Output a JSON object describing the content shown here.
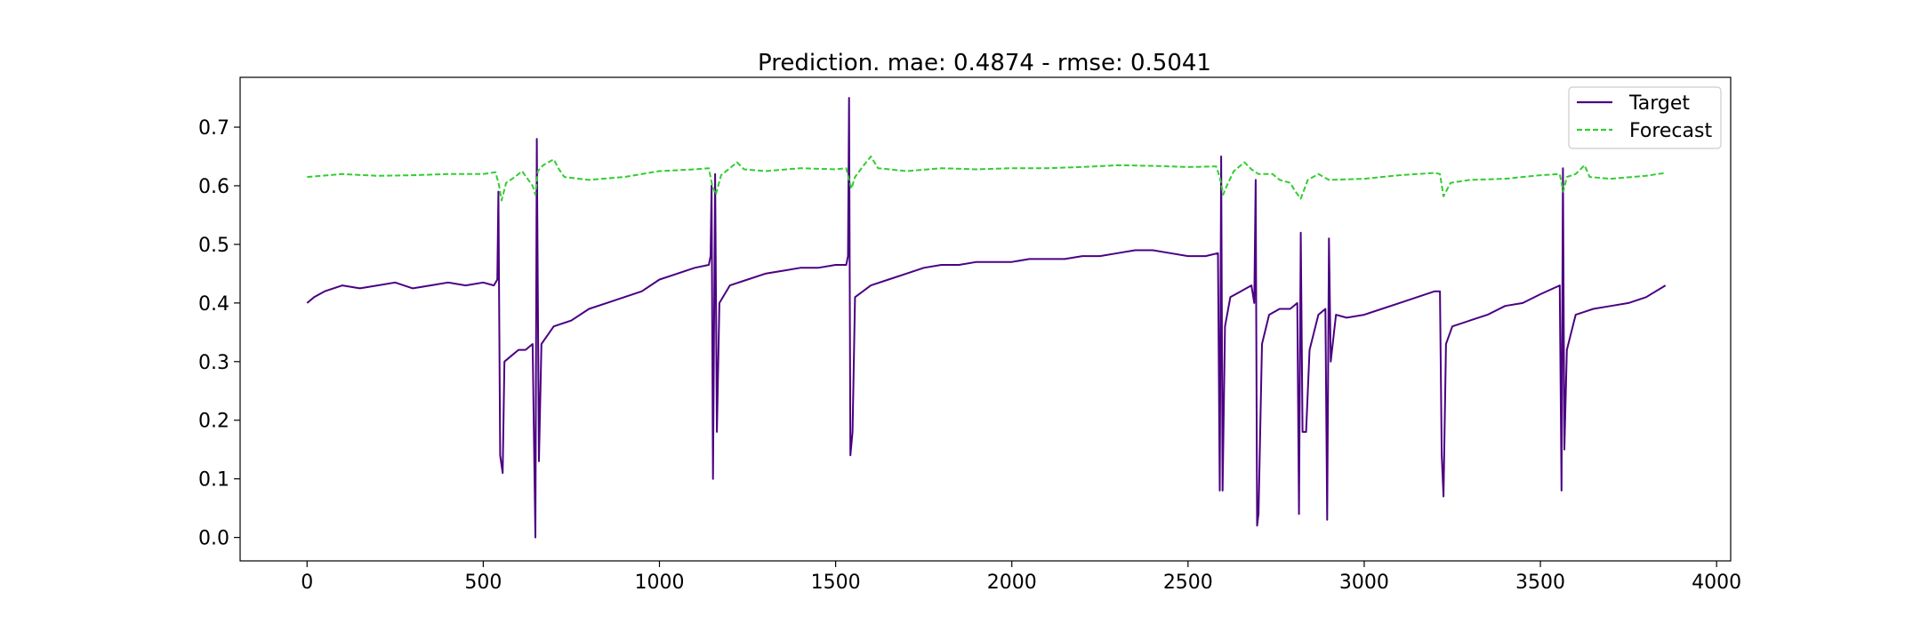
{
  "chart_data": {
    "type": "line",
    "title": "Prediction. mae: 0.4874 - rmse: 0.5041",
    "xlabel": "",
    "ylabel": "",
    "xlim": [
      -190,
      4040
    ],
    "ylim": [
      -0.04,
      0.785
    ],
    "x_ticks": [
      0,
      500,
      1000,
      1500,
      2000,
      2500,
      3000,
      3500,
      4000
    ],
    "x_tick_labels": [
      "0",
      "500",
      "1000",
      "1500",
      "2000",
      "2500",
      "3000",
      "3500",
      "4000"
    ],
    "y_ticks": [
      0.0,
      0.1,
      0.2,
      0.3,
      0.4,
      0.5,
      0.6,
      0.7
    ],
    "y_tick_labels": [
      "0.0",
      "0.1",
      "0.2",
      "0.3",
      "0.4",
      "0.5",
      "0.6",
      "0.7"
    ],
    "grid": false,
    "legend_position": "top-right",
    "series": [
      {
        "name": "Target",
        "color": "#4b0082",
        "style": "solid",
        "points": [
          [
            0,
            0.4
          ],
          [
            20,
            0.41
          ],
          [
            50,
            0.42
          ],
          [
            100,
            0.43
          ],
          [
            150,
            0.425
          ],
          [
            200,
            0.43
          ],
          [
            250,
            0.435
          ],
          [
            300,
            0.425
          ],
          [
            350,
            0.43
          ],
          [
            400,
            0.435
          ],
          [
            450,
            0.43
          ],
          [
            500,
            0.435
          ],
          [
            530,
            0.43
          ],
          [
            540,
            0.44
          ],
          [
            543,
            0.59
          ],
          [
            548,
            0.14
          ],
          [
            555,
            0.11
          ],
          [
            560,
            0.3
          ],
          [
            580,
            0.31
          ],
          [
            600,
            0.32
          ],
          [
            620,
            0.32
          ],
          [
            640,
            0.33
          ],
          [
            648,
            0.0
          ],
          [
            652,
            0.68
          ],
          [
            658,
            0.13
          ],
          [
            665,
            0.33
          ],
          [
            700,
            0.36
          ],
          [
            750,
            0.37
          ],
          [
            800,
            0.39
          ],
          [
            850,
            0.4
          ],
          [
            900,
            0.41
          ],
          [
            950,
            0.42
          ],
          [
            1000,
            0.44
          ],
          [
            1050,
            0.45
          ],
          [
            1100,
            0.46
          ],
          [
            1140,
            0.465
          ],
          [
            1145,
            0.48
          ],
          [
            1148,
            0.6
          ],
          [
            1152,
            0.1
          ],
          [
            1158,
            0.62
          ],
          [
            1163,
            0.18
          ],
          [
            1170,
            0.4
          ],
          [
            1200,
            0.43
          ],
          [
            1250,
            0.44
          ],
          [
            1300,
            0.45
          ],
          [
            1350,
            0.455
          ],
          [
            1400,
            0.46
          ],
          [
            1450,
            0.46
          ],
          [
            1500,
            0.465
          ],
          [
            1530,
            0.465
          ],
          [
            1535,
            0.48
          ],
          [
            1538,
            0.75
          ],
          [
            1542,
            0.14
          ],
          [
            1548,
            0.18
          ],
          [
            1555,
            0.41
          ],
          [
            1600,
            0.43
          ],
          [
            1650,
            0.44
          ],
          [
            1700,
            0.45
          ],
          [
            1750,
            0.46
          ],
          [
            1800,
            0.465
          ],
          [
            1850,
            0.465
          ],
          [
            1900,
            0.47
          ],
          [
            1950,
            0.47
          ],
          [
            2000,
            0.47
          ],
          [
            2050,
            0.475
          ],
          [
            2100,
            0.475
          ],
          [
            2150,
            0.475
          ],
          [
            2200,
            0.48
          ],
          [
            2250,
            0.48
          ],
          [
            2300,
            0.485
          ],
          [
            2350,
            0.49
          ],
          [
            2400,
            0.49
          ],
          [
            2450,
            0.485
          ],
          [
            2500,
            0.48
          ],
          [
            2550,
            0.48
          ],
          [
            2585,
            0.485
          ],
          [
            2590,
            0.08
          ],
          [
            2594,
            0.65
          ],
          [
            2598,
            0.08
          ],
          [
            2605,
            0.36
          ],
          [
            2620,
            0.41
          ],
          [
            2650,
            0.42
          ],
          [
            2680,
            0.43
          ],
          [
            2688,
            0.4
          ],
          [
            2692,
            0.61
          ],
          [
            2696,
            0.02
          ],
          [
            2700,
            0.04
          ],
          [
            2710,
            0.33
          ],
          [
            2730,
            0.38
          ],
          [
            2760,
            0.39
          ],
          [
            2790,
            0.39
          ],
          [
            2810,
            0.4
          ],
          [
            2815,
            0.04
          ],
          [
            2820,
            0.52
          ],
          [
            2825,
            0.18
          ],
          [
            2835,
            0.18
          ],
          [
            2845,
            0.32
          ],
          [
            2870,
            0.38
          ],
          [
            2890,
            0.39
          ],
          [
            2895,
            0.03
          ],
          [
            2900,
            0.51
          ],
          [
            2905,
            0.3
          ],
          [
            2920,
            0.38
          ],
          [
            2950,
            0.375
          ],
          [
            3000,
            0.38
          ],
          [
            3050,
            0.39
          ],
          [
            3100,
            0.4
          ],
          [
            3150,
            0.41
          ],
          [
            3200,
            0.42
          ],
          [
            3215,
            0.42
          ],
          [
            3220,
            0.14
          ],
          [
            3225,
            0.07
          ],
          [
            3232,
            0.33
          ],
          [
            3250,
            0.36
          ],
          [
            3300,
            0.37
          ],
          [
            3350,
            0.38
          ],
          [
            3400,
            0.395
          ],
          [
            3450,
            0.4
          ],
          [
            3500,
            0.415
          ],
          [
            3555,
            0.43
          ],
          [
            3560,
            0.08
          ],
          [
            3564,
            0.63
          ],
          [
            3568,
            0.15
          ],
          [
            3575,
            0.32
          ],
          [
            3600,
            0.38
          ],
          [
            3650,
            0.39
          ],
          [
            3700,
            0.395
          ],
          [
            3750,
            0.4
          ],
          [
            3800,
            0.41
          ],
          [
            3855,
            0.43
          ]
        ]
      },
      {
        "name": "Forecast",
        "color": "#32cd32",
        "style": "dashed",
        "points": [
          [
            0,
            0.615
          ],
          [
            100,
            0.62
          ],
          [
            200,
            0.617
          ],
          [
            300,
            0.618
          ],
          [
            400,
            0.62
          ],
          [
            500,
            0.62
          ],
          [
            535,
            0.623
          ],
          [
            545,
            0.6
          ],
          [
            552,
            0.575
          ],
          [
            565,
            0.605
          ],
          [
            590,
            0.615
          ],
          [
            610,
            0.625
          ],
          [
            628,
            0.61
          ],
          [
            640,
            0.6
          ],
          [
            648,
            0.585
          ],
          [
            655,
            0.625
          ],
          [
            670,
            0.635
          ],
          [
            700,
            0.645
          ],
          [
            715,
            0.628
          ],
          [
            730,
            0.615
          ],
          [
            800,
            0.61
          ],
          [
            900,
            0.615
          ],
          [
            1000,
            0.625
          ],
          [
            1100,
            0.628
          ],
          [
            1140,
            0.63
          ],
          [
            1150,
            0.6
          ],
          [
            1160,
            0.585
          ],
          [
            1175,
            0.618
          ],
          [
            1200,
            0.63
          ],
          [
            1220,
            0.64
          ],
          [
            1240,
            0.628
          ],
          [
            1300,
            0.625
          ],
          [
            1400,
            0.63
          ],
          [
            1500,
            0.628
          ],
          [
            1530,
            0.63
          ],
          [
            1538,
            0.61
          ],
          [
            1545,
            0.595
          ],
          [
            1555,
            0.615
          ],
          [
            1580,
            0.635
          ],
          [
            1600,
            0.65
          ],
          [
            1620,
            0.63
          ],
          [
            1700,
            0.625
          ],
          [
            1800,
            0.63
          ],
          [
            1900,
            0.628
          ],
          [
            2000,
            0.63
          ],
          [
            2100,
            0.63
          ],
          [
            2200,
            0.632
          ],
          [
            2300,
            0.635
          ],
          [
            2400,
            0.634
          ],
          [
            2500,
            0.632
          ],
          [
            2580,
            0.633
          ],
          [
            2590,
            0.615
          ],
          [
            2600,
            0.585
          ],
          [
            2610,
            0.6
          ],
          [
            2630,
            0.625
          ],
          [
            2660,
            0.64
          ],
          [
            2680,
            0.628
          ],
          [
            2700,
            0.62
          ],
          [
            2740,
            0.62
          ],
          [
            2760,
            0.61
          ],
          [
            2790,
            0.605
          ],
          [
            2805,
            0.59
          ],
          [
            2820,
            0.578
          ],
          [
            2840,
            0.61
          ],
          [
            2870,
            0.62
          ],
          [
            2900,
            0.61
          ],
          [
            3000,
            0.612
          ],
          [
            3100,
            0.618
          ],
          [
            3200,
            0.622
          ],
          [
            3215,
            0.62
          ],
          [
            3225,
            0.582
          ],
          [
            3245,
            0.605
          ],
          [
            3300,
            0.61
          ],
          [
            3400,
            0.612
          ],
          [
            3500,
            0.618
          ],
          [
            3555,
            0.62
          ],
          [
            3565,
            0.59
          ],
          [
            3575,
            0.615
          ],
          [
            3600,
            0.62
          ],
          [
            3625,
            0.635
          ],
          [
            3640,
            0.615
          ],
          [
            3700,
            0.612
          ],
          [
            3800,
            0.617
          ],
          [
            3855,
            0.622
          ]
        ]
      }
    ]
  }
}
